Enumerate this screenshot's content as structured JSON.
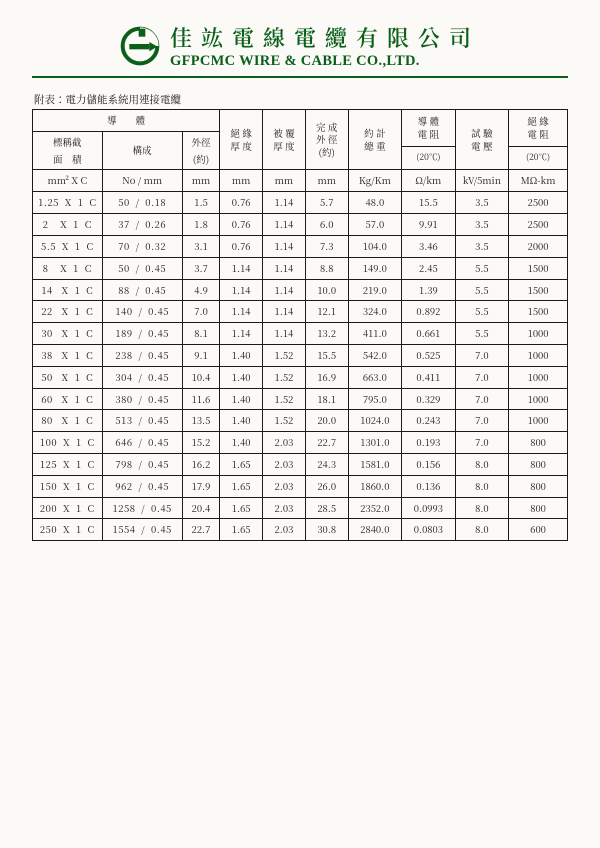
{
  "company": {
    "cn": "佳竑電線電纜有限公司",
    "en": "GFPCMC WIRE & CABLE CO.,LTD."
  },
  "caption": "附表：電力儲能系統用連接電纜",
  "header": {
    "conductor": "導　　體",
    "nominal": "標稱截",
    "area": "面　積",
    "structure": "構成",
    "od": "外徑",
    "approx": "(約)",
    "ins": "絕 緣\n厚 度",
    "sheath": "被 覆\n厚 度",
    "overall": "完 成\n外 徑\n(約)",
    "weight": "約 計\n總 重",
    "res": "導 體\n電 阻",
    "res_t": "(20℃)",
    "volt": "試 驗\n電 壓",
    "ires": "絕 緣\n電 阻",
    "ires_t": "(20℃)"
  },
  "units": {
    "mm2": "mm²  X    C",
    "struct": "No  /  mm",
    "mm": "mm",
    "kgkm": "Kg/Km",
    "ohmkm": "Ω/km",
    "kv5": "kV/5min",
    "mohm": "MΩ-km"
  },
  "rows": [
    {
      "a": "1.25  X  1  C",
      "b": "50  /  0.18",
      "c": "1.5",
      "d": "0.76",
      "e": "1.14",
      "f": "5.7",
      "g": "48.0",
      "h": "15.5",
      "i": "3.5",
      "j": "2500"
    },
    {
      "a": "2    X  1  C",
      "b": "37  /  0.26",
      "c": "1.8",
      "d": "0.76",
      "e": "1.14",
      "f": "6.0",
      "g": "57.0",
      "h": "9.91",
      "i": "3.5",
      "j": "2500"
    },
    {
      "a": "5.5  X  1  C",
      "b": "70  /  0.32",
      "c": "3.1",
      "d": "0.76",
      "e": "1.14",
      "f": "7.3",
      "g": "104.0",
      "h": "3.46",
      "i": "3.5",
      "j": "2000"
    },
    {
      "a": "8    X  1  C",
      "b": "50  /  0.45",
      "c": "3.7",
      "d": "1.14",
      "e": "1.14",
      "f": "8.8",
      "g": "149.0",
      "h": "2.45",
      "i": "5.5",
      "j": "1500"
    },
    {
      "a": "14   X  1  C",
      "b": "88  /  0.45",
      "c": "4.9",
      "d": "1.14",
      "e": "1.14",
      "f": "10.0",
      "g": "219.0",
      "h": "1.39",
      "i": "5.5",
      "j": "1500"
    },
    {
      "a": "22   X  1  C",
      "b": "140  /  0.45",
      "c": "7.0",
      "d": "1.14",
      "e": "1.14",
      "f": "12.1",
      "g": "324.0",
      "h": "0.892",
      "i": "5.5",
      "j": "1500"
    },
    {
      "a": "30   X  1  C",
      "b": "189  /  0.45",
      "c": "8.1",
      "d": "1.14",
      "e": "1.14",
      "f": "13.2",
      "g": "411.0",
      "h": "0.661",
      "i": "5.5",
      "j": "1000"
    },
    {
      "a": "38   X  1  C",
      "b": "238  /  0.45",
      "c": "9.1",
      "d": "1.40",
      "e": "1.52",
      "f": "15.5",
      "g": "542.0",
      "h": "0.525",
      "i": "7.0",
      "j": "1000"
    },
    {
      "a": "50   X  1  C",
      "b": "304  /  0.45",
      "c": "10.4",
      "d": "1.40",
      "e": "1.52",
      "f": "16.9",
      "g": "663.0",
      "h": "0.411",
      "i": "7.0",
      "j": "1000"
    },
    {
      "a": "60   X  1  C",
      "b": "380  /  0.45",
      "c": "11.6",
      "d": "1.40",
      "e": "1.52",
      "f": "18.1",
      "g": "795.0",
      "h": "0.329",
      "i": "7.0",
      "j": "1000"
    },
    {
      "a": "80   X  1  C",
      "b": "513  /  0.45",
      "c": "13.5",
      "d": "1.40",
      "e": "1.52",
      "f": "20.0",
      "g": "1024.0",
      "h": "0.243",
      "i": "7.0",
      "j": "1000"
    },
    {
      "a": "100  X  1  C",
      "b": "646  /  0.45",
      "c": "15.2",
      "d": "1.40",
      "e": "2.03",
      "f": "22.7",
      "g": "1301.0",
      "h": "0.193",
      "i": "7.0",
      "j": "800"
    },
    {
      "a": "125  X  1  C",
      "b": "798  /  0.45",
      "c": "16.2",
      "d": "1.65",
      "e": "2.03",
      "f": "24.3",
      "g": "1581.0",
      "h": "0.156",
      "i": "8.0",
      "j": "800"
    },
    {
      "a": "150  X  1  C",
      "b": "962  /  0.45",
      "c": "17.9",
      "d": "1.65",
      "e": "2.03",
      "f": "26.0",
      "g": "1860.0",
      "h": "0.136",
      "i": "8.0",
      "j": "800"
    },
    {
      "a": "200  X  1  C",
      "b": "1258  /  0.45",
      "c": "20.4",
      "d": "1.65",
      "e": "2.03",
      "f": "28.5",
      "g": "2352.0",
      "h": "0.0993",
      "i": "8.0",
      "j": "800"
    },
    {
      "a": "250  X  1  C",
      "b": "1554  /  0.45",
      "c": "22.7",
      "d": "1.65",
      "e": "2.03",
      "f": "30.8",
      "g": "2840.0",
      "h": "0.0803",
      "i": "8.0",
      "j": "600"
    }
  ]
}
